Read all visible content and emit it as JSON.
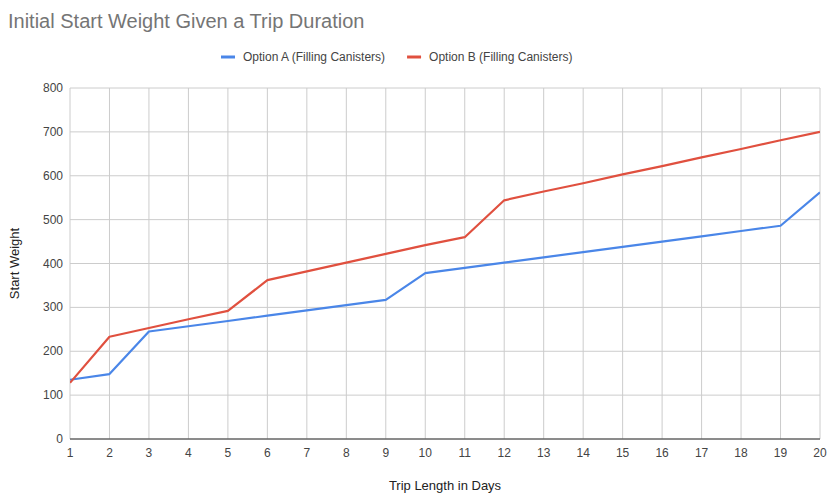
{
  "chart_data": {
    "type": "line",
    "title": "Initial Start Weight Given a Trip Duration",
    "x_label": "Trip Length in Days",
    "y_label": "Start Weight",
    "x": [
      1,
      2,
      3,
      4,
      5,
      6,
      7,
      8,
      9,
      10,
      11,
      12,
      13,
      14,
      15,
      16,
      17,
      18,
      19,
      20
    ],
    "series": [
      {
        "name": "Option A (Filling Canisters)",
        "color": "#4a86e8",
        "values": [
          135,
          148,
          245,
          257,
          269,
          281,
          293,
          305,
          317,
          378,
          390,
          402,
          414,
          426,
          438,
          450,
          462,
          474,
          486,
          562
        ]
      },
      {
        "name": "Option B (Filling Canisters)",
        "color": "#e0503f",
        "values": [
          128,
          233,
          253,
          273,
          292,
          362,
          382,
          402,
          422,
          442,
          460,
          544,
          564,
          583,
          603,
          622,
          642,
          661,
          681,
          700
        ]
      }
    ],
    "xlim": [
      1,
      20
    ],
    "xticks": [
      1,
      2,
      3,
      4,
      5,
      6,
      7,
      8,
      9,
      10,
      11,
      12,
      13,
      14,
      15,
      16,
      17,
      18,
      19,
      20
    ],
    "ylim": [
      0,
      800
    ],
    "yticks": [
      0,
      100,
      200,
      300,
      400,
      500,
      600,
      700,
      800
    ],
    "grid": true,
    "legend": "top"
  }
}
